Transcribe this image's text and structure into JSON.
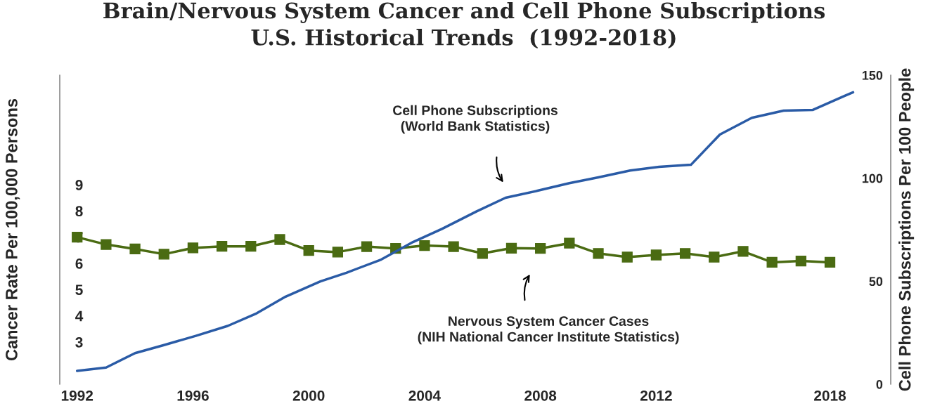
{
  "chart_data": {
    "type": "line",
    "title": "Brain/Nervous System Cancer and Cell Phone Subscriptions\nU.S. Historical Trends  (1992-2018)",
    "ylabel": "Cancer Rate Per 100,000 Persons",
    "y2label": "Cell Phone Subscriptions Per 100 People",
    "xlim": [
      1991.4,
      2020.1
    ],
    "xticks": [
      1992,
      1996,
      2000,
      2004,
      2008,
      2012,
      2018
    ],
    "ylim": [
      1.39,
      13.18
    ],
    "yticks": [
      3,
      4,
      5,
      6,
      7,
      8,
      9
    ],
    "y2lim": [
      0,
      150
    ],
    "y2ticks": [
      0,
      50,
      100,
      150
    ],
    "grid": false,
    "legend": false,
    "series": [
      {
        "color": "#4a6b12",
        "marker": "square",
        "axis": "y",
        "x": [
          1992,
          1993,
          1994,
          1995,
          1996,
          1997,
          1998,
          1999,
          2000,
          2001,
          2002,
          2003,
          2004,
          2005,
          2006,
          2007,
          2008,
          2009,
          2010,
          2011,
          2012,
          2013,
          2014,
          2015,
          2016,
          2017,
          2018
        ],
        "values": [
          7.0,
          6.72,
          6.55,
          6.35,
          6.59,
          6.65,
          6.65,
          6.91,
          6.49,
          6.43,
          6.64,
          6.57,
          6.68,
          6.64,
          6.38,
          6.58,
          6.57,
          6.77,
          6.38,
          6.24,
          6.32,
          6.38,
          6.24,
          6.46,
          6.04,
          6.09,
          6.04
        ]
      },
      {
        "color": "#2a5ba6",
        "marker": "none",
        "axis": "y2",
        "x": [
          1992.0,
          1993.0,
          1994.0,
          1995.0,
          1996.1,
          1997.2,
          1998.2,
          1999.2,
          2000.4,
          2001.3,
          2002.5,
          2003.6,
          2004.6,
          2005.8,
          2006.8,
          2007.9,
          2009.0,
          2010.0,
          2011.1,
          2012.1,
          2013.2,
          2014.2,
          2015.3,
          2016.4,
          2017.4,
          2018.5,
          2018.8
        ],
        "values": [
          6.5,
          8.1,
          15.1,
          19.0,
          23.5,
          28.3,
          34.4,
          42.5,
          49.9,
          54.1,
          60.5,
          69.0,
          75.4,
          83.9,
          90.5,
          93.9,
          97.6,
          100.4,
          103.7,
          105.5,
          106.5,
          121.2,
          129.3,
          132.8,
          133.1,
          139.9,
          141.7
        ]
      }
    ],
    "annotations": [
      "Cell Phone Subscriptions\n(World Bank Statistics)",
      "Nervous System Cancer Cases\n(NIH National Cancer Institute Statistics)"
    ]
  }
}
